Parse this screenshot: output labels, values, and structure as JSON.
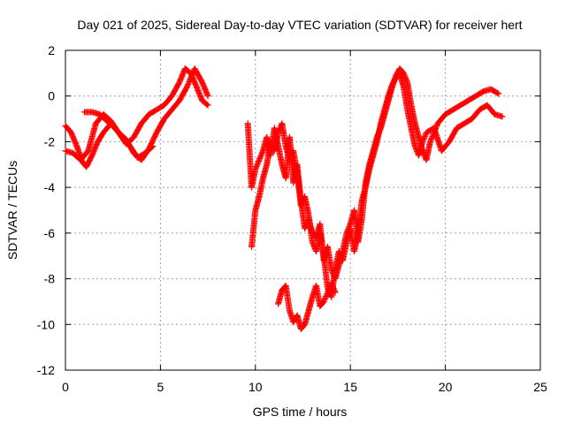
{
  "chart_data": {
    "type": "scatter",
    "title": "Day 021 of 2025, Sidereal Day-to-day VTEC variation (SDTVAR) for receiver hert",
    "xlabel": "GPS time / hours",
    "ylabel": "SDTVAR / TECUs",
    "xlim": [
      0,
      25
    ],
    "ylim": [
      -12,
      2
    ],
    "xticks": [
      "0",
      "5",
      "10",
      "15",
      "20",
      "25"
    ],
    "yticks": [
      "2",
      "0",
      "-2",
      "-4",
      "-6",
      "-8",
      "-10",
      "-12"
    ],
    "xtick_values": [
      0,
      5,
      10,
      15,
      20,
      25
    ],
    "ytick_values": [
      2,
      0,
      -2,
      -4,
      -6,
      -8,
      -10,
      -12
    ],
    "grid": true,
    "marker": "+",
    "series": [
      {
        "name": "SDTVAR arc 1",
        "color": "#ff0000",
        "x": [
          0.0,
          0.3,
          0.6,
          0.9,
          1.1,
          1.4,
          1.7,
          2.0,
          2.4,
          2.8,
          3.2,
          3.6,
          4.0,
          4.4,
          4.8,
          5.2,
          5.6,
          6.0,
          6.3,
          6.6,
          6.9,
          7.2,
          7.5
        ],
        "y": [
          -1.3,
          -1.6,
          -2.2,
          -2.9,
          -3.1,
          -2.6,
          -2.0,
          -1.6,
          -1.2,
          -1.6,
          -2.1,
          -1.8,
          -1.2,
          -0.8,
          -0.6,
          -0.4,
          0.0,
          0.6,
          1.2,
          1.0,
          0.4,
          -0.2,
          -0.4
        ]
      },
      {
        "name": "SDTVAR arc 2",
        "color": "#ff0000",
        "x": [
          0.0,
          0.4,
          0.8,
          1.2,
          1.6,
          2.0,
          2.4,
          2.8,
          3.2,
          3.6,
          4.0,
          4.4,
          4.8,
          5.2,
          5.6,
          6.0,
          6.4,
          6.8,
          7.2,
          7.5
        ],
        "y": [
          -2.4,
          -2.5,
          -2.8,
          -2.4,
          -1.2,
          -0.8,
          -1.1,
          -1.6,
          -1.9,
          -2.5,
          -2.8,
          -2.3,
          -1.6,
          -1.0,
          -0.6,
          -0.2,
          0.4,
          1.2,
          0.6,
          0.0
        ]
      },
      {
        "name": "SDTVAR arc 3",
        "color": "#ff0000",
        "x": [
          1.0,
          1.4,
          1.8,
          2.2,
          2.6,
          3.0,
          3.4,
          3.8,
          4.2,
          4.6
        ],
        "y": [
          -0.7,
          -0.7,
          -0.8,
          -1.1,
          -1.4,
          -1.8,
          -2.2,
          -2.7,
          -2.5,
          -2.2
        ]
      },
      {
        "name": "SDTVAR arc 4",
        "color": "#ff0000",
        "x": [
          9.6,
          9.8,
          10.0,
          10.2,
          10.4,
          10.6,
          10.8,
          11.0,
          11.2,
          11.4,
          11.6,
          11.8,
          12.0,
          12.2,
          12.4,
          12.6,
          12.8,
          13.0,
          13.2,
          13.4,
          13.6,
          13.8,
          14.0,
          14.2,
          14.4,
          14.6,
          14.8,
          15.0,
          15.2,
          15.4,
          15.6,
          15.8,
          16.0,
          16.2,
          16.4,
          16.6,
          16.8,
          17.0,
          17.2,
          17.4,
          17.6,
          17.8,
          18.0,
          18.2,
          18.4,
          18.6,
          18.8,
          19.0,
          19.2,
          19.4,
          19.6,
          19.8,
          20.0,
          20.4,
          20.8,
          21.2,
          21.6,
          22.0,
          22.4,
          22.8
        ],
        "y": [
          -1.2,
          -4.0,
          -3.2,
          -2.8,
          -2.4,
          -1.8,
          -2.6,
          -1.4,
          -2.2,
          -3.0,
          -3.6,
          -1.8,
          -3.8,
          -3.0,
          -4.6,
          -5.8,
          -5.4,
          -6.0,
          -6.2,
          -5.6,
          -7.2,
          -6.6,
          -7.6,
          -8.0,
          -7.4,
          -6.8,
          -6.0,
          -5.6,
          -5.0,
          -6.4,
          -5.4,
          -3.8,
          -3.0,
          -2.4,
          -1.8,
          -1.4,
          -0.8,
          -0.2,
          0.4,
          0.9,
          1.2,
          1.0,
          0.6,
          -0.4,
          -1.2,
          -1.8,
          -2.4,
          -2.8,
          -2.0,
          -1.6,
          -1.2,
          -1.0,
          -0.8,
          -0.6,
          -0.4,
          -0.2,
          0.0,
          0.2,
          0.3,
          0.1
        ]
      },
      {
        "name": "SDTVAR arc 5",
        "color": "#ff0000",
        "x": [
          9.8,
          10.0,
          10.2,
          10.4,
          10.6,
          10.8,
          11.0,
          11.2,
          11.4,
          11.6,
          11.8,
          12.0,
          12.2,
          12.4,
          12.6,
          12.8,
          13.0,
          13.2,
          13.4,
          13.6,
          13.8,
          14.0,
          14.2,
          14.4,
          14.6,
          14.8,
          15.0,
          15.2,
          15.4,
          15.6,
          15.8,
          16.0,
          16.2,
          16.4,
          16.6,
          16.8,
          17.0,
          17.2,
          17.4,
          17.6,
          17.8,
          18.0,
          18.2,
          18.4,
          18.6,
          18.8,
          19.0,
          19.4,
          19.8,
          20.2,
          20.6,
          21.0,
          21.4,
          21.8,
          22.2,
          22.6,
          23.0
        ],
        "y": [
          -6.6,
          -5.0,
          -4.4,
          -3.6,
          -3.0,
          -2.0,
          -2.4,
          -1.6,
          -1.2,
          -2.2,
          -2.8,
          -2.4,
          -3.4,
          -4.8,
          -4.4,
          -5.2,
          -6.4,
          -6.8,
          -6.0,
          -7.0,
          -8.4,
          -8.8,
          -7.6,
          -6.8,
          -7.2,
          -6.4,
          -5.8,
          -6.8,
          -6.0,
          -4.6,
          -4.0,
          -3.2,
          -2.6,
          -2.0,
          -1.2,
          -0.6,
          0.0,
          0.5,
          0.8,
          1.0,
          0.4,
          -0.6,
          -1.4,
          -2.2,
          -2.6,
          -2.0,
          -1.6,
          -1.4,
          -2.4,
          -2.0,
          -1.4,
          -1.2,
          -1.0,
          -0.6,
          -0.4,
          -0.8,
          -0.9
        ]
      },
      {
        "name": "SDTVAR arc 6",
        "color": "#ff0000",
        "x": [
          11.2,
          11.4,
          11.6,
          11.8,
          12.0,
          12.2,
          12.4,
          12.6,
          12.8,
          13.0,
          13.2,
          13.4,
          13.6,
          13.8,
          14.0,
          14.2
        ],
        "y": [
          -9.1,
          -8.5,
          -8.3,
          -9.4,
          -9.9,
          -9.6,
          -10.2,
          -10.0,
          -9.4,
          -8.8,
          -8.3,
          -9.2,
          -9.0,
          -8.6,
          -8.2,
          -8.6
        ]
      }
    ]
  }
}
